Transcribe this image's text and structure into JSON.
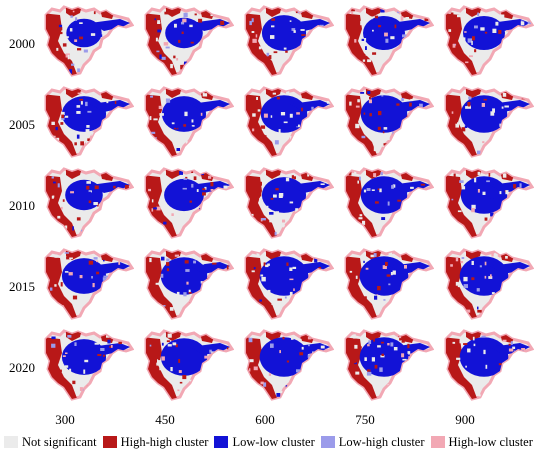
{
  "figure": {
    "years": [
      "2000",
      "2005",
      "2010",
      "2015",
      "2020"
    ],
    "scales": [
      "300",
      "450",
      "600",
      "750",
      "900"
    ],
    "low_low_share": [
      [
        0.35,
        0.4,
        0.55,
        0.5,
        0.5
      ],
      [
        0.55,
        0.55,
        0.6,
        0.6,
        0.6
      ],
      [
        0.4,
        0.45,
        0.55,
        0.6,
        0.6
      ],
      [
        0.55,
        0.6,
        0.65,
        0.65,
        0.65
      ],
      [
        0.55,
        0.6,
        0.65,
        0.65,
        0.65
      ]
    ]
  },
  "legend": [
    {
      "label": "Not significant",
      "color": "#ebebeb"
    },
    {
      "label": "High-high cluster",
      "color": "#b81818"
    },
    {
      "label": "Low-low cluster",
      "color": "#1212d6"
    },
    {
      "label": "Low-high cluster",
      "color": "#9b9bea"
    },
    {
      "label": "High-low cluster",
      "color": "#f2a8b4"
    }
  ]
}
